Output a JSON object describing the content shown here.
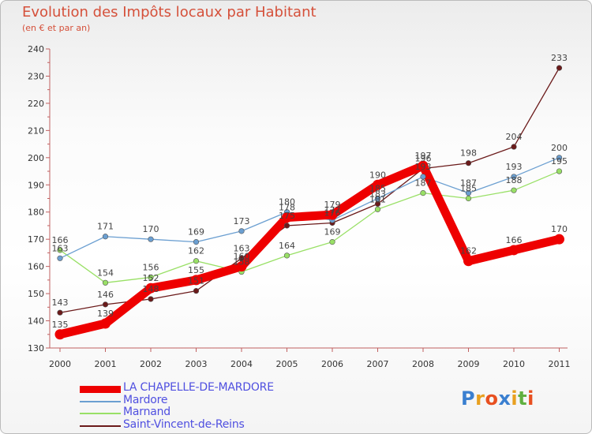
{
  "chart_data": {
    "type": "line",
    "title": "Evolution des Impôts locaux par Habitant",
    "subtitle": "(en € et par an)",
    "x": [
      "2000",
      "2001",
      "2002",
      "2003",
      "2004",
      "2005",
      "2006",
      "2007",
      "2008",
      "2009",
      "2010",
      "2011"
    ],
    "ylim": [
      130,
      240
    ],
    "yticks": [
      "130",
      "140",
      "150",
      "160",
      "170",
      "180",
      "190",
      "200",
      "210",
      "220",
      "230",
      "240"
    ],
    "grid": false,
    "series": [
      {
        "name": "Saint-Vincent-de-Reins",
        "color": "#6b1a1a",
        "values": [
          143,
          146,
          148,
          151,
          163,
          175,
          176,
          183,
          196,
          198,
          204,
          233
        ],
        "labels": [
          "143",
          "146",
          "148",
          "151",
          "163",
          "175",
          "176",
          "183",
          "196",
          "198",
          "204",
          "233"
        ]
      },
      {
        "name": "Marnand",
        "color": "#99e066",
        "values": [
          166,
          154,
          156,
          162,
          158,
          164,
          169,
          181,
          187,
          185,
          188,
          195
        ],
        "labels": [
          "166",
          "154",
          "156",
          "162",
          "158",
          "164",
          "169",
          "181",
          "187",
          "185",
          "188",
          "195"
        ]
      },
      {
        "name": "Mardore",
        "color": "#6b9fd1",
        "values": [
          163,
          171,
          170,
          169,
          173,
          180,
          177,
          185,
          193,
          187,
          193,
          200
        ],
        "labels": [
          "163",
          "171",
          "170",
          "169",
          "173",
          "180",
          "177",
          "185",
          "193",
          "187",
          "193",
          "200"
        ]
      },
      {
        "name": "LA CHAPELLE-DE-MARDORE",
        "color": "#ee0000",
        "values": [
          135,
          139,
          152,
          155,
          160,
          178,
          179,
          190,
          197,
          162,
          166,
          170
        ],
        "labels": [
          "135",
          "139",
          "152",
          "155",
          "160",
          "178",
          "179",
          "190",
          "197",
          "162",
          "166",
          "170"
        ]
      }
    ]
  },
  "legend": [
    {
      "label": "LA CHAPELLE-DE-MARDORE",
      "color": "#ee0000"
    },
    {
      "label": "Mardore",
      "color": "#6b9fd1"
    },
    {
      "label": "Marnand",
      "color": "#99e066"
    },
    {
      "label": "Saint-Vincent-de-Reins",
      "color": "#6b1a1a"
    }
  ],
  "logo": {
    "text": "Proxiti",
    "letters": [
      "P",
      "r",
      "o",
      "x",
      "i",
      "t",
      "i"
    ],
    "colors": [
      "#3a7fd0",
      "#e8a020",
      "#e85020",
      "#3a7fd0",
      "#e8a020",
      "#60b040",
      "#e85020"
    ]
  }
}
